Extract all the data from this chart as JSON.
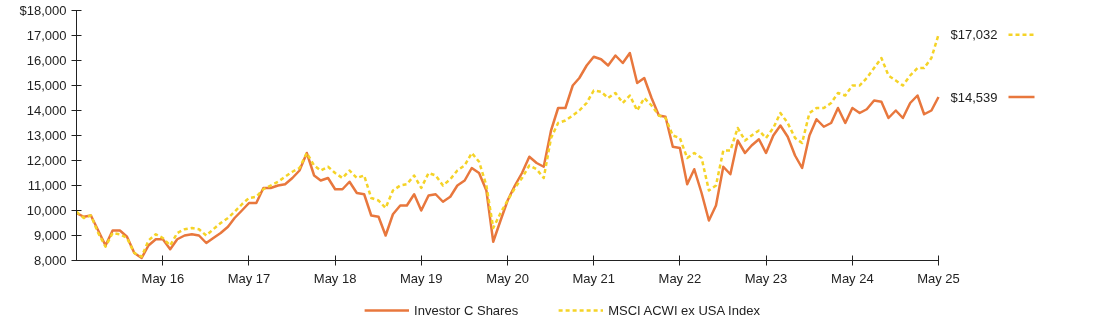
{
  "chart_data": {
    "type": "line",
    "x": [
      "2015-05",
      "2015-06",
      "2015-07",
      "2015-08",
      "2015-09",
      "2015-10",
      "2015-11",
      "2015-12",
      "2016-01",
      "2016-02",
      "2016-03",
      "2016-04",
      "2016-05",
      "2016-06",
      "2016-07",
      "2016-08",
      "2016-09",
      "2016-10",
      "2016-11",
      "2016-12",
      "2017-01",
      "2017-02",
      "2017-03",
      "2017-04",
      "2017-05",
      "2017-06",
      "2017-07",
      "2017-08",
      "2017-09",
      "2017-10",
      "2017-11",
      "2017-12",
      "2018-01",
      "2018-02",
      "2018-03",
      "2018-04",
      "2018-05",
      "2018-06",
      "2018-07",
      "2018-08",
      "2018-09",
      "2018-10",
      "2018-11",
      "2018-12",
      "2019-01",
      "2019-02",
      "2019-03",
      "2019-04",
      "2019-05",
      "2019-06",
      "2019-07",
      "2019-08",
      "2019-09",
      "2019-10",
      "2019-11",
      "2019-12",
      "2020-01",
      "2020-02",
      "2020-03",
      "2020-04",
      "2020-05",
      "2020-06",
      "2020-07",
      "2020-08",
      "2020-09",
      "2020-10",
      "2020-11",
      "2020-12",
      "2021-01",
      "2021-02",
      "2021-03",
      "2021-04",
      "2021-05",
      "2021-06",
      "2021-07",
      "2021-08",
      "2021-09",
      "2021-10",
      "2021-11",
      "2021-12",
      "2022-01",
      "2022-02",
      "2022-03",
      "2022-04",
      "2022-05",
      "2022-06",
      "2022-07",
      "2022-08",
      "2022-09",
      "2022-10",
      "2022-11",
      "2022-12",
      "2023-01",
      "2023-02",
      "2023-03",
      "2023-04",
      "2023-05",
      "2023-06",
      "2023-07",
      "2023-08",
      "2023-09",
      "2023-10",
      "2023-11",
      "2023-12",
      "2024-01",
      "2024-02",
      "2024-03",
      "2024-04",
      "2024-05",
      "2024-06",
      "2024-07",
      "2024-08",
      "2024-09",
      "2024-10",
      "2024-11",
      "2024-12",
      "2025-01",
      "2025-02",
      "2025-03",
      "2025-04",
      "2025-05"
    ],
    "series": [
      {
        "name": "Investor C Shares",
        "color": "#e8773d",
        "line_style": "solid",
        "values": [
          9900,
          9750,
          9800,
          9200,
          8600,
          9200,
          9200,
          8950,
          8300,
          8100,
          8600,
          8850,
          8850,
          8450,
          8850,
          9000,
          9050,
          9000,
          8700,
          8900,
          9100,
          9350,
          9700,
          10000,
          10300,
          10300,
          10900,
          10900,
          11000,
          11050,
          11300,
          11600,
          12300,
          11400,
          11200,
          11300,
          10850,
          10850,
          11150,
          10700,
          10650,
          9800,
          9750,
          9000,
          9850,
          10200,
          10200,
          10650,
          10000,
          10600,
          10650,
          10350,
          10550,
          11000,
          11200,
          11700,
          11500,
          10800,
          8750,
          9600,
          10400,
          11000,
          11500,
          12150,
          11900,
          11750,
          13200,
          14100,
          14100,
          15000,
          15300,
          15800,
          16150,
          16050,
          15800,
          16200,
          15900,
          16300,
          15100,
          15300,
          14500,
          13800,
          13750,
          12550,
          12500,
          11050,
          11650,
          10700,
          9600,
          10200,
          11750,
          11450,
          12800,
          12300,
          12600,
          12850,
          12300,
          13000,
          13400,
          12950,
          12200,
          11700,
          13000,
          13650,
          13350,
          13500,
          14100,
          13500,
          14100,
          13900,
          14050,
          14400,
          14350,
          13700,
          14000,
          13700,
          14300,
          14600,
          13850,
          14000,
          14539
        ],
        "value_labels": [
          null,
          null,
          null,
          null,
          null,
          null,
          null,
          null,
          null,
          null,
          null,
          null,
          null,
          null,
          null,
          null,
          null,
          null,
          null,
          null,
          null,
          null,
          null,
          null,
          null,
          null,
          null,
          null,
          null,
          null,
          null,
          null,
          null,
          null,
          null,
          null,
          null,
          null,
          null,
          null,
          null,
          null,
          null,
          null,
          null,
          null,
          null,
          null,
          null,
          null,
          null,
          null,
          null,
          null,
          null,
          null,
          null,
          null,
          null,
          null,
          null,
          null,
          null,
          null,
          null,
          null,
          null,
          null,
          null,
          null,
          null,
          null,
          null,
          null,
          null,
          null,
          null,
          null,
          null,
          null,
          null,
          null,
          null,
          null,
          null,
          null,
          null,
          null,
          null,
          null,
          null,
          null,
          null,
          null,
          null,
          null,
          null,
          null,
          null,
          null,
          null,
          null,
          null,
          null,
          null,
          null,
          null,
          null,
          null,
          null,
          null,
          null,
          null,
          null,
          null,
          null,
          null,
          null,
          null,
          null,
          "$14,539"
        ]
      },
      {
        "name": "MSCI ACWI ex USA Index",
        "color": "#f5d327",
        "line_style": "dashed",
        "values": [
          9950,
          9700,
          9800,
          9100,
          8550,
          9100,
          9050,
          8900,
          8300,
          8150,
          8800,
          9050,
          8900,
          8600,
          9100,
          9250,
          9300,
          9250,
          9000,
          9250,
          9500,
          9700,
          9950,
          10250,
          10500,
          10550,
          10850,
          11000,
          11150,
          11350,
          11550,
          11700,
          12300,
          11800,
          11600,
          11750,
          11500,
          11300,
          11600,
          11300,
          11400,
          10500,
          10400,
          10100,
          10800,
          11000,
          11050,
          11400,
          10900,
          11500,
          11400,
          11000,
          11250,
          11600,
          11800,
          12300,
          11950,
          11000,
          9300,
          9900,
          10400,
          10900,
          11300,
          11800,
          11650,
          11300,
          12900,
          13500,
          13600,
          13800,
          14000,
          14300,
          14800,
          14750,
          14500,
          14700,
          14300,
          14600,
          14000,
          14500,
          14200,
          13800,
          13700,
          13000,
          12900,
          12100,
          12300,
          12100,
          10800,
          11000,
          12400,
          12400,
          13300,
          12800,
          13000,
          13200,
          12900,
          13300,
          13900,
          13500,
          12900,
          12700,
          13900,
          14100,
          14100,
          14300,
          14700,
          14600,
          15000,
          15000,
          15300,
          15700,
          16100,
          15400,
          15200,
          15000,
          15400,
          15700,
          15700,
          16100,
          17032
        ],
        "value_labels": [
          null,
          null,
          null,
          null,
          null,
          null,
          null,
          null,
          null,
          null,
          null,
          null,
          null,
          null,
          null,
          null,
          null,
          null,
          null,
          null,
          null,
          null,
          null,
          null,
          null,
          null,
          null,
          null,
          null,
          null,
          null,
          null,
          null,
          null,
          null,
          null,
          null,
          null,
          null,
          null,
          null,
          null,
          null,
          null,
          null,
          null,
          null,
          null,
          null,
          null,
          null,
          null,
          null,
          null,
          null,
          null,
          null,
          null,
          null,
          null,
          null,
          null,
          null,
          null,
          null,
          null,
          null,
          null,
          null,
          null,
          null,
          null,
          null,
          null,
          null,
          null,
          null,
          null,
          null,
          null,
          null,
          null,
          null,
          null,
          null,
          null,
          null,
          null,
          null,
          null,
          null,
          null,
          null,
          null,
          null,
          null,
          null,
          null,
          null,
          null,
          null,
          null,
          null,
          null,
          null,
          null,
          null,
          null,
          null,
          null,
          null,
          null,
          null,
          null,
          null,
          null,
          null,
          null,
          null,
          null,
          "$17,032"
        ]
      }
    ],
    "xlim": [
      "2015-05",
      "2025-05"
    ],
    "xticks": [
      {
        "value": "2016-05",
        "label": "May 16"
      },
      {
        "value": "2017-05",
        "label": "May 17"
      },
      {
        "value": "2018-05",
        "label": "May 18"
      },
      {
        "value": "2019-05",
        "label": "May 19"
      },
      {
        "value": "2020-05",
        "label": "May 20"
      },
      {
        "value": "2021-05",
        "label": "May 21"
      },
      {
        "value": "2022-05",
        "label": "May 22"
      },
      {
        "value": "2023-05",
        "label": "May 23"
      },
      {
        "value": "2024-05",
        "label": "May 24"
      },
      {
        "value": "2025-05",
        "label": "May 25"
      }
    ],
    "ylim": [
      8000,
      18000
    ],
    "yticks": [
      {
        "value": 8000,
        "label": "8,000"
      },
      {
        "value": 9000,
        "label": "9,000"
      },
      {
        "value": 10000,
        "label": "10,000"
      },
      {
        "value": 11000,
        "label": "11,000"
      },
      {
        "value": 12000,
        "label": "12,000"
      },
      {
        "value": 13000,
        "label": "13,000"
      },
      {
        "value": 14000,
        "label": "14,000"
      },
      {
        "value": 15000,
        "label": "15,000"
      },
      {
        "value": 16000,
        "label": "16,000"
      },
      {
        "value": 17000,
        "label": "17,000"
      },
      {
        "value": 18000,
        "label": "$18,000"
      }
    ],
    "grid": false,
    "legend": "bottom",
    "marker": "none"
  }
}
